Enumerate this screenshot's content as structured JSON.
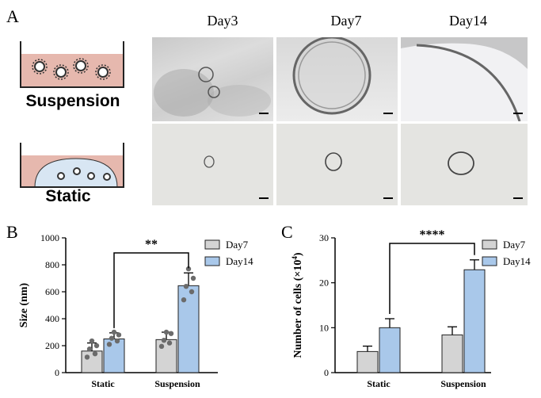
{
  "panels": {
    "a": "A",
    "b": "B",
    "c": "C"
  },
  "panel_a": {
    "day_labels": [
      "Day3",
      "Day7",
      "Day14"
    ],
    "schematic_labels": [
      "Suspension",
      "Static"
    ]
  },
  "colors": {
    "day7": "#d4d4d4",
    "day14": "#a9c8ea",
    "dots": "#6b6b6b",
    "bar_edge": "#222222"
  },
  "chart_data": [
    {
      "type": "bar",
      "categories": [
        "Static",
        "Suspension"
      ],
      "series": [
        {
          "name": "Day7",
          "values": [
            160,
            245
          ],
          "errors": [
            60,
            55
          ],
          "points": [
            [
              115,
              140,
              175,
              200,
              235
            ],
            [
              195,
              220,
              240,
              290,
              300
            ]
          ]
        },
        {
          "name": "Day14",
          "values": [
            250,
            645
          ],
          "errors": [
            45,
            95
          ],
          "points": [
            [
              210,
              235,
              255,
              280,
              300
            ],
            [
              540,
              600,
              640,
              700,
              770
            ]
          ]
        }
      ],
      "ylabel": "Size (nm)",
      "ylim": [
        0,
        1000
      ],
      "yticks": [
        0,
        200,
        400,
        600,
        800,
        1000
      ],
      "significance": {
        "label": "**",
        "from": "Static Day14",
        "to": "Suspension Day14"
      },
      "legend": "top-right"
    },
    {
      "type": "bar",
      "categories": [
        "Static",
        "Suspension"
      ],
      "series": [
        {
          "name": "Day7",
          "values": [
            4.7,
            8.4
          ],
          "errors": [
            1.2,
            1.8
          ]
        },
        {
          "name": "Day14",
          "values": [
            10.0,
            22.9
          ],
          "errors": [
            2.0,
            2.2
          ]
        }
      ],
      "ylabel": "Number of cells (×10",
      "ylabel_sup": "4",
      "ylabel_end": ")",
      "ylim": [
        0,
        30
      ],
      "yticks": [
        0,
        10,
        20,
        30
      ],
      "significance": {
        "label": "****",
        "from": "Static Day14",
        "to": "Suspension Day14"
      },
      "legend": "top-right"
    }
  ]
}
